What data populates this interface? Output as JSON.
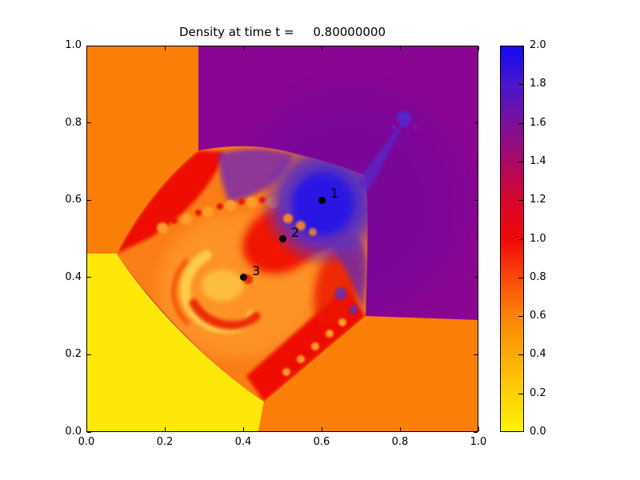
{
  "figure": {
    "title": "Density at time t =     0.80000000"
  },
  "chart_data": {
    "type": "heatmap",
    "title": "Density at time t =     0.80000000",
    "quantity": "Density",
    "time": 0.8,
    "xlim": [
      0.0,
      1.0
    ],
    "ylim": [
      0.0,
      1.0
    ],
    "grid": false,
    "x_ticks": [
      0.0,
      0.2,
      0.4,
      0.6,
      0.8,
      1.0
    ],
    "x_tick_labels": [
      "0.0",
      "0.2",
      "0.4",
      "0.6",
      "0.8",
      "1.0"
    ],
    "y_ticks": [
      0.0,
      0.2,
      0.4,
      0.6,
      0.8,
      1.0
    ],
    "y_tick_labels": [
      "0.0",
      "0.2",
      "0.4",
      "0.6",
      "0.8",
      "1.0"
    ],
    "colorbar": {
      "min": 0.0,
      "max": 2.0,
      "ticks": [
        0.0,
        0.2,
        0.4,
        0.6,
        0.8,
        1.0,
        1.2,
        1.4,
        1.6,
        1.8,
        2.0
      ],
      "tick_labels": [
        "0.0",
        "0.2",
        "0.4",
        "0.6",
        "0.8",
        "1.0",
        "1.2",
        "1.4",
        "1.6",
        "1.8",
        "2.0"
      ],
      "colormap_stops": [
        {
          "value": 0.0,
          "color": "#fdf303"
        },
        {
          "value": 0.2,
          "color": "#fdd104"
        },
        {
          "value": 0.4,
          "color": "#fca905"
        },
        {
          "value": 0.6,
          "color": "#fb8307"
        },
        {
          "value": 0.8,
          "color": "#f9480a"
        },
        {
          "value": 1.0,
          "color": "#ef0708"
        },
        {
          "value": 1.2,
          "color": "#d8062e"
        },
        {
          "value": 1.4,
          "color": "#a90a66"
        },
        {
          "value": 1.6,
          "color": "#7a109b"
        },
        {
          "value": 1.8,
          "color": "#4a16cd"
        },
        {
          "value": 2.0,
          "color": "#140af2"
        }
      ]
    },
    "annotations": [
      {
        "label": "1",
        "x": 0.6,
        "y": 0.6
      },
      {
        "label": "2",
        "x": 0.5,
        "y": 0.5
      },
      {
        "label": "3",
        "x": 0.4,
        "y": 0.4
      }
    ],
    "regions": [
      {
        "name": "top-left-quadrant",
        "approx_density": 0.5,
        "color": "#fb7e08"
      },
      {
        "name": "bottom-left-quadrant",
        "approx_density": 0.15,
        "color": "#fde708"
      },
      {
        "name": "top-right-quadrant",
        "approx_density": 1.5,
        "color": "#8a0591"
      },
      {
        "name": "bottom-right-quadrant",
        "approx_density": 0.5,
        "color": "#fb7e08"
      },
      {
        "name": "central-blue-lobe",
        "approx_density": 1.9,
        "color": "#2a18e2"
      },
      {
        "name": "shock-ring",
        "approx_density": 1.0,
        "color": "#ee1103"
      },
      {
        "name": "central-vortex",
        "approx_density": 0.3,
        "color": "#ffcf4d"
      }
    ]
  }
}
